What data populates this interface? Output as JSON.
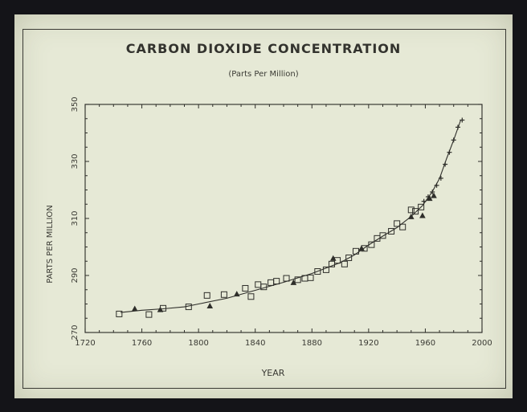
{
  "chart_data": {
    "type": "scatter",
    "title": "CARBON DIOXIDE CONCENTRATION",
    "subtitle": "(Parts Per Million)",
    "xlabel": "YEAR",
    "ylabel": "PARTS PER MILLION",
    "xlim": [
      1720,
      2000
    ],
    "ylim": [
      270,
      350
    ],
    "xticks": [
      "1720",
      "1760",
      "1800",
      "1840",
      "1880",
      "1920",
      "1960",
      "2000"
    ],
    "yticks": [
      "270",
      "290",
      "310",
      "330",
      "350"
    ],
    "grid": false,
    "series": [
      {
        "marker": "square",
        "x": [
          1744,
          1765,
          1775,
          1793,
          1806,
          1818,
          1833,
          1837,
          1842,
          1846,
          1851,
          1855,
          1862,
          1870,
          1875,
          1879,
          1884,
          1890,
          1894,
          1898,
          1903,
          1906,
          1911,
          1917,
          1922,
          1926,
          1930,
          1936,
          1940,
          1944,
          1950,
          1953,
          1957
        ],
        "y": [
          276.5,
          276.3,
          278.5,
          279.0,
          283.0,
          283.3,
          285.5,
          282.6,
          286.8,
          286.0,
          287.5,
          288.0,
          289.0,
          288.5,
          289.0,
          289.2,
          291.4,
          292.0,
          294.0,
          295.3,
          294.0,
          296.2,
          298.5,
          299.5,
          300.8,
          303.0,
          304.0,
          305.5,
          308.2,
          307.0,
          313.0,
          312.5,
          314.0
        ]
      },
      {
        "marker": "triangle",
        "x": [
          1755,
          1773,
          1808,
          1827,
          1867,
          1895,
          1915,
          1950,
          1958,
          1963,
          1966
        ],
        "y": [
          278.3,
          278.0,
          279.3,
          283.5,
          287.5,
          296.0,
          299.5,
          310.6,
          311.0,
          317.0,
          318.0
        ]
      },
      {
        "marker": "star",
        "x": [
          1959,
          1962,
          1965,
          1968,
          1971,
          1974,
          1977,
          1980,
          1983,
          1986
        ],
        "y": [
          316.0,
          317.6,
          319.3,
          321.6,
          324.1,
          329.0,
          333.2,
          337.5,
          342.0,
          344.5
        ]
      },
      {
        "marker": "line",
        "x": [
          1745,
          1760,
          1775,
          1790,
          1800,
          1820,
          1840,
          1860,
          1880,
          1900,
          1910,
          1920,
          1930,
          1940,
          1950,
          1958,
          1965,
          1970,
          1975,
          1980,
          1985
        ],
        "y": [
          277.0,
          277.8,
          278.3,
          279.0,
          280.0,
          282.0,
          284.8,
          287.6,
          290.7,
          294.5,
          297.2,
          300.7,
          303.8,
          306.8,
          310.7,
          314.5,
          319.5,
          324.0,
          331.0,
          337.5,
          344.5
        ]
      }
    ]
  }
}
